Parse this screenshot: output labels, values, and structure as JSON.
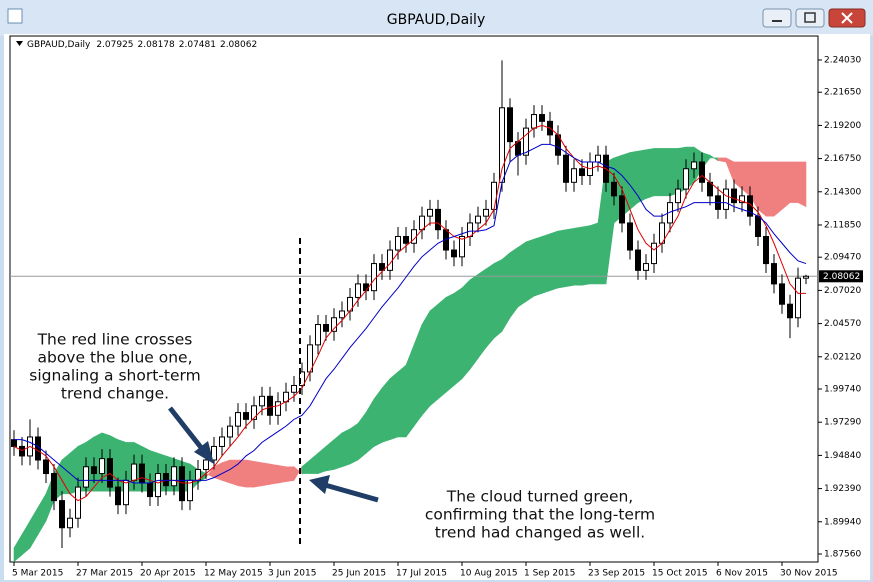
{
  "chart_data": {
    "type": "candlestick",
    "title": "GBPAUD,Daily",
    "open": [
      1.96,
      1.955,
      1.948,
      1.962,
      1.945,
      1.935,
      1.915,
      1.895,
      1.902,
      1.925,
      1.94,
      1.935,
      1.946,
      1.925,
      1.912,
      1.93,
      1.942,
      1.928,
      1.918,
      1.935,
      1.926,
      1.94,
      1.915,
      1.93,
      1.938,
      1.945,
      1.955,
      1.962,
      1.97,
      1.98,
      1.975,
      1.985,
      1.992,
      1.978,
      1.988,
      1.995,
      2.0,
      2.01,
      2.03,
      2.045,
      2.04,
      2.05,
      2.055,
      2.065,
      2.075,
      2.07,
      2.09,
      2.085,
      2.1,
      2.11,
      2.105,
      2.115,
      2.125,
      2.13,
      2.115,
      2.1,
      2.095,
      2.11,
      2.12,
      2.125,
      2.13,
      2.15,
      2.205,
      2.18,
      2.17,
      2.19,
      2.2,
      2.195,
      2.185,
      2.17,
      2.15,
      2.16,
      2.155,
      2.165,
      2.17,
      2.15,
      2.14,
      2.12,
      2.1,
      2.085,
      2.09,
      2.105,
      2.12,
      2.135,
      2.145,
      2.16,
      2.165,
      2.15,
      2.14,
      2.13,
      2.145,
      2.135,
      2.14,
      2.125,
      2.11,
      2.09,
      2.075,
      2.06,
      2.05,
      2.07925
    ],
    "high": [
      1.967,
      1.962,
      1.975,
      1.969,
      1.952,
      1.942,
      1.922,
      1.909,
      1.932,
      1.947,
      1.947,
      1.953,
      1.953,
      1.932,
      1.937,
      1.949,
      1.949,
      1.935,
      1.942,
      1.942,
      1.947,
      1.947,
      1.937,
      1.945,
      1.952,
      1.962,
      1.969,
      1.977,
      1.987,
      1.987,
      1.992,
      1.999,
      1.999,
      1.995,
      2.002,
      2.007,
      2.017,
      2.037,
      2.052,
      2.052,
      2.057,
      2.062,
      2.072,
      2.082,
      2.082,
      2.097,
      2.097,
      2.107,
      2.117,
      2.117,
      2.122,
      2.132,
      2.137,
      2.137,
      2.122,
      2.107,
      2.117,
      2.127,
      2.132,
      2.137,
      2.157,
      2.24,
      2.212,
      2.187,
      2.197,
      2.207,
      2.207,
      2.202,
      2.192,
      2.177,
      2.167,
      2.167,
      2.172,
      2.177,
      2.177,
      2.157,
      2.147,
      2.127,
      2.107,
      2.097,
      2.112,
      2.127,
      2.142,
      2.152,
      2.167,
      2.172,
      2.172,
      2.157,
      2.147,
      2.152,
      2.152,
      2.147,
      2.147,
      2.132,
      2.117,
      2.097,
      2.082,
      2.067,
      2.087,
      2.08178
    ],
    "low": [
      1.948,
      1.941,
      1.941,
      1.938,
      1.928,
      1.908,
      1.88,
      1.888,
      1.895,
      1.918,
      1.928,
      1.928,
      1.918,
      1.905,
      1.905,
      1.923,
      1.921,
      1.911,
      1.911,
      1.919,
      1.919,
      1.908,
      1.908,
      1.923,
      1.931,
      1.938,
      1.948,
      1.955,
      1.963,
      1.968,
      1.968,
      1.978,
      1.971,
      1.971,
      1.981,
      1.988,
      1.993,
      2.003,
      2.023,
      2.033,
      2.033,
      2.043,
      2.048,
      2.058,
      2.063,
      2.063,
      2.078,
      2.078,
      2.093,
      2.098,
      2.098,
      2.108,
      2.118,
      2.108,
      2.093,
      2.088,
      2.088,
      2.103,
      2.113,
      2.118,
      2.123,
      2.143,
      2.165,
      2.155,
      2.163,
      2.183,
      2.188,
      2.178,
      2.163,
      2.143,
      2.143,
      2.148,
      2.148,
      2.158,
      2.143,
      2.133,
      2.113,
      2.093,
      2.078,
      2.078,
      2.083,
      2.098,
      2.113,
      2.128,
      2.138,
      2.153,
      2.143,
      2.133,
      2.123,
      2.123,
      2.128,
      2.128,
      2.118,
      2.103,
      2.083,
      2.068,
      2.053,
      2.035,
      2.043,
      2.07481
    ],
    "close": [
      1.955,
      1.948,
      1.962,
      1.945,
      1.935,
      1.915,
      1.895,
      1.902,
      1.925,
      1.94,
      1.935,
      1.946,
      1.925,
      1.912,
      1.93,
      1.942,
      1.928,
      1.918,
      1.935,
      1.926,
      1.94,
      1.915,
      1.93,
      1.938,
      1.945,
      1.955,
      1.962,
      1.97,
      1.98,
      1.975,
      1.985,
      1.992,
      1.978,
      1.988,
      1.995,
      2.0,
      2.01,
      2.03,
      2.045,
      2.04,
      2.05,
      2.055,
      2.065,
      2.075,
      2.07,
      2.09,
      2.085,
      2.1,
      2.11,
      2.105,
      2.115,
      2.125,
      2.13,
      2.115,
      2.1,
      2.095,
      2.11,
      2.12,
      2.125,
      2.13,
      2.15,
      2.205,
      2.18,
      2.17,
      2.19,
      2.2,
      2.195,
      2.185,
      2.17,
      2.15,
      2.16,
      2.155,
      2.165,
      2.17,
      2.15,
      2.14,
      2.12,
      2.1,
      2.085,
      2.09,
      2.105,
      2.12,
      2.135,
      2.145,
      2.16,
      2.165,
      2.15,
      2.14,
      2.13,
      2.145,
      2.135,
      2.14,
      2.125,
      2.11,
      2.09,
      2.075,
      2.06,
      2.05,
      2.07925,
      2.08062
    ],
    "lines": [
      {
        "color": "#e00000",
        "values": [
          1.955,
          1.952,
          1.955,
          1.952,
          1.948,
          1.94,
          1.93,
          1.92,
          1.915,
          1.918,
          1.925,
          1.932,
          1.935,
          1.93,
          1.928,
          1.93,
          1.932,
          1.93,
          1.928,
          1.93,
          1.93,
          1.928,
          1.928,
          1.93,
          1.935,
          1.94,
          1.948,
          1.955,
          1.962,
          1.97,
          1.976,
          1.982,
          1.984,
          1.985,
          1.988,
          1.992,
          1.998,
          2.01,
          2.022,
          2.035,
          2.042,
          2.048,
          2.055,
          2.063,
          2.07,
          2.078,
          2.084,
          2.09,
          2.098,
          2.103,
          2.108,
          2.115,
          2.12,
          2.12,
          2.115,
          2.11,
          2.108,
          2.11,
          2.115,
          2.12,
          2.13,
          2.16,
          2.175,
          2.18,
          2.185,
          2.19,
          2.192,
          2.19,
          2.185,
          2.175,
          2.168,
          2.162,
          2.16,
          2.162,
          2.16,
          2.155,
          2.145,
          2.13,
          2.115,
          2.105,
          2.1,
          2.105,
          2.115,
          2.125,
          2.14,
          2.15,
          2.155,
          2.15,
          2.145,
          2.14,
          2.138,
          2.136,
          2.134,
          2.128,
          2.118,
          2.105,
          2.09,
          2.075,
          2.068,
          2.068
        ]
      },
      {
        "color": "#0000c8",
        "values": [
          1.96,
          1.96,
          1.958,
          1.955,
          1.95,
          1.945,
          1.94,
          1.935,
          1.93,
          1.93,
          1.93,
          1.93,
          1.93,
          1.93,
          1.93,
          1.928,
          1.928,
          1.928,
          1.93,
          1.93,
          1.93,
          1.93,
          1.93,
          1.93,
          1.93,
          1.932,
          1.935,
          1.938,
          1.942,
          1.948,
          1.952,
          1.958,
          1.962,
          1.966,
          1.97,
          1.975,
          1.978,
          1.985,
          1.995,
          2.005,
          2.012,
          2.02,
          2.028,
          2.035,
          2.042,
          2.05,
          2.058,
          2.065,
          2.072,
          2.08,
          2.088,
          2.095,
          2.1,
          2.105,
          2.108,
          2.11,
          2.112,
          2.114,
          2.114,
          2.115,
          2.118,
          2.15,
          2.165,
          2.17,
          2.172,
          2.175,
          2.178,
          2.178,
          2.176,
          2.172,
          2.168,
          2.165,
          2.165,
          2.165,
          2.162,
          2.16,
          2.155,
          2.148,
          2.14,
          2.13,
          2.125,
          2.125,
          2.128,
          2.13,
          2.132,
          2.135,
          2.135,
          2.135,
          2.135,
          2.135,
          2.132,
          2.13,
          2.128,
          2.125,
          2.12,
          2.112,
          2.105,
          2.098,
          2.092,
          2.09
        ]
      }
    ],
    "cloud": {
      "up_color": "#3cb371",
      "down_color": "#f08080",
      "span_a": [
        1.88,
        1.89,
        1.9,
        1.91,
        1.92,
        1.935,
        1.945,
        1.95,
        1.955,
        1.958,
        1.962,
        1.965,
        1.963,
        1.96,
        1.958,
        1.958,
        1.955,
        1.952,
        1.95,
        1.948,
        1.946,
        1.944,
        1.942,
        1.938,
        1.935,
        1.932,
        1.93,
        1.928,
        1.926,
        1.925,
        1.925,
        1.926,
        1.927,
        1.928,
        1.929,
        1.93,
        1.94,
        1.945,
        1.95,
        1.955,
        1.96,
        1.965,
        1.968,
        1.972,
        1.98,
        1.99,
        1.998,
        2.005,
        2.01,
        2.015,
        2.03,
        2.045,
        2.055,
        2.06,
        2.065,
        2.068,
        2.072,
        2.078,
        2.082,
        2.086,
        2.09,
        2.093,
        2.098,
        2.102,
        2.106,
        2.108,
        2.11,
        2.112,
        2.114,
        2.115,
        2.116,
        2.117,
        2.118,
        2.12,
        2.165,
        2.168,
        2.17,
        2.172,
        2.173,
        2.174,
        2.175,
        2.175,
        2.175,
        2.175,
        2.176,
        2.176,
        2.172,
        2.17,
        2.166,
        2.165,
        2.15,
        2.145,
        2.14,
        2.13,
        2.125,
        2.125,
        2.13,
        2.135,
        2.135,
        2.132
      ],
      "span_b": [
        1.87,
        1.875,
        1.88,
        1.89,
        1.9,
        1.915,
        1.92,
        1.92,
        1.922,
        1.922,
        1.922,
        1.922,
        1.922,
        1.922,
        1.922,
        1.922,
        1.922,
        1.922,
        1.922,
        1.922,
        1.922,
        1.922,
        1.922,
        1.928,
        1.932,
        1.94,
        1.943,
        1.945,
        1.945,
        1.945,
        1.944,
        1.943,
        1.942,
        1.941,
        1.94,
        1.94,
        1.935,
        1.935,
        1.935,
        1.937,
        1.938,
        1.94,
        1.942,
        1.945,
        1.95,
        1.955,
        1.958,
        1.96,
        1.962,
        1.962,
        1.97,
        1.978,
        1.985,
        1.99,
        1.995,
        2.0,
        2.005,
        2.012,
        2.02,
        2.028,
        2.035,
        2.04,
        2.05,
        2.058,
        2.062,
        2.066,
        2.068,
        2.07,
        2.072,
        2.073,
        2.074,
        2.074,
        2.075,
        2.075,
        2.075,
        2.12,
        2.125,
        2.13,
        2.135,
        2.138,
        2.14,
        2.14,
        2.14,
        2.142,
        2.145,
        2.15,
        2.16,
        2.168,
        2.168,
        2.168,
        2.165,
        2.165,
        2.165,
        2.165,
        2.165,
        2.165,
        2.165,
        2.165,
        2.165,
        2.165
      ]
    },
    "xlim": [
      -0.5,
      100.5
    ],
    "xticks": [
      {
        "value": 0,
        "label": "5 Mar 2015"
      },
      {
        "value": 8,
        "label": "27 Mar 2015"
      },
      {
        "value": 16,
        "label": "20 Apr 2015"
      },
      {
        "value": 24,
        "label": "12 May 2015"
      },
      {
        "value": 32,
        "label": "3 Jun 2015"
      },
      {
        "value": 40,
        "label": "25 Jun 2015"
      },
      {
        "value": 48,
        "label": "17 Jul 2015"
      },
      {
        "value": 56,
        "label": "10 Aug 2015"
      },
      {
        "value": 64,
        "label": "1 Sep 2015"
      },
      {
        "value": 72,
        "label": "23 Sep 2015"
      },
      {
        "value": 80,
        "label": "15 Oct 2015"
      },
      {
        "value": 88,
        "label": "6 Nov 2015"
      },
      {
        "value": 96,
        "label": "30 Nov 2015"
      }
    ],
    "ylim": [
      1.8697,
      2.258
    ],
    "yticks": [
      {
        "value": 2.2403,
        "label": "2.24030"
      },
      {
        "value": 2.2165,
        "label": "2.21650"
      },
      {
        "value": 2.192,
        "label": "2.19200"
      },
      {
        "value": 2.1675,
        "label": "2.16750"
      },
      {
        "value": 2.143,
        "label": "2.14300"
      },
      {
        "value": 2.1185,
        "label": "2.11850"
      },
      {
        "value": 2.0947,
        "label": "2.09470"
      },
      {
        "value": 2.0702,
        "label": "2.07020"
      },
      {
        "value": 2.0457,
        "label": "2.04570"
      },
      {
        "value": 2.0212,
        "label": "2.02120"
      },
      {
        "value": 1.9974,
        "label": "1.99740"
      },
      {
        "value": 1.9729,
        "label": "1.97290"
      },
      {
        "value": 1.9484,
        "label": "1.94840"
      },
      {
        "value": 1.9239,
        "label": "1.92390"
      },
      {
        "value": 1.8994,
        "label": "1.89940"
      },
      {
        "value": 1.8756,
        "label": "1.87560"
      }
    ],
    "annotations": [
      {
        "lines": [
          "The red line crosses",
          "above the blue one,",
          "signaling a short-term",
          "trend change."
        ]
      },
      {
        "lines": [
          "The cloud turned green,",
          "confirming that the long-term",
          "trend had changed as well."
        ]
      }
    ]
  }
}
